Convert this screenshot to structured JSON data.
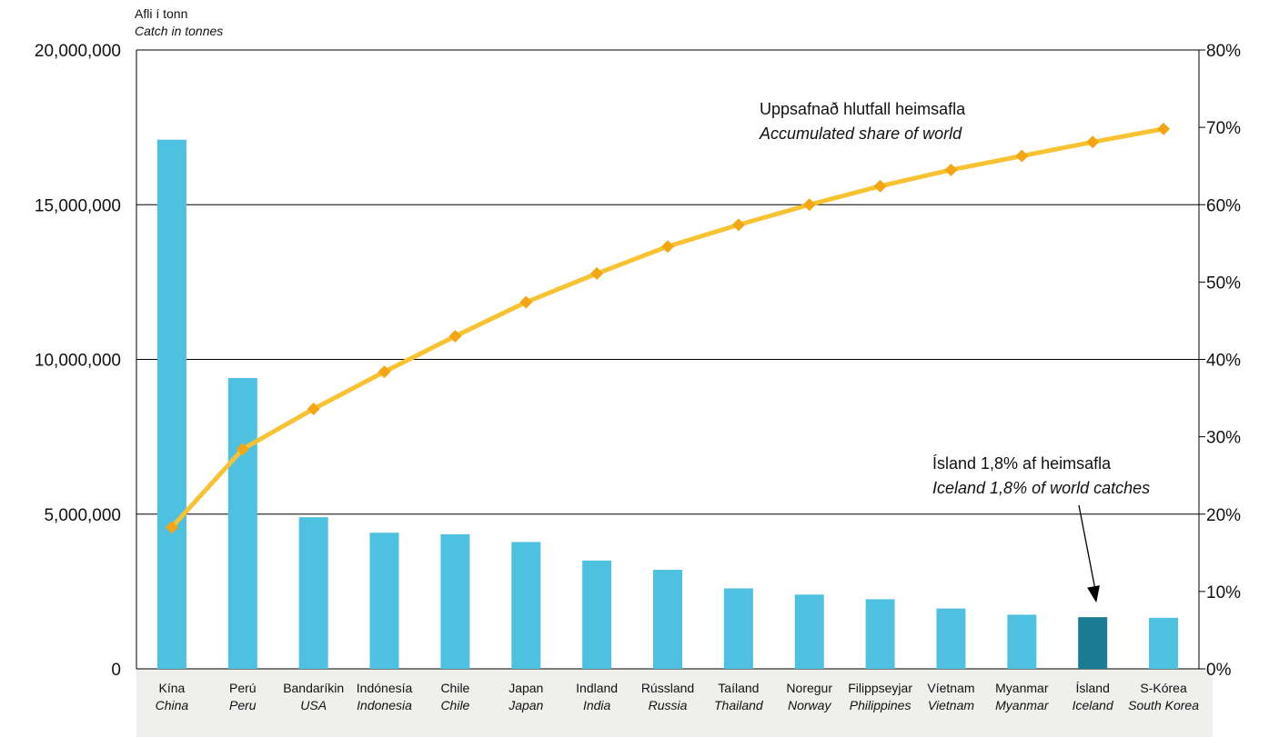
{
  "chart_data": {
    "type": "bar",
    "y_axis_title": {
      "is": "Afli í tonn",
      "en": "Catch in tonnes"
    },
    "ylim": [
      0,
      20000000
    ],
    "y_ticks": [
      "0",
      "5,000,000",
      "10,000,000",
      "15,000,000",
      "20,000,000"
    ],
    "y2lim": [
      0,
      80
    ],
    "y2_ticks": [
      "0%",
      "10%",
      "20%",
      "30%",
      "40%",
      "50%",
      "60%",
      "70%",
      "80%"
    ],
    "grid": "horizontal-major",
    "categories": [
      {
        "is": "Kína",
        "en": "China"
      },
      {
        "is": "Perú",
        "en": "Peru"
      },
      {
        "is": "Bandaríkin",
        "en": "USA"
      },
      {
        "is": "Indónesía",
        "en": "Indonesia"
      },
      {
        "is": "Chile",
        "en": "Chile"
      },
      {
        "is": "Japan",
        "en": "Japan"
      },
      {
        "is": "Indland",
        "en": "India"
      },
      {
        "is": "Rússland",
        "en": "Russia"
      },
      {
        "is": "Taíland",
        "en": "Thailand"
      },
      {
        "is": "Noregur",
        "en": "Norway"
      },
      {
        "is": "Filippseyjar",
        "en": "Philippines"
      },
      {
        "is": "Víetnam",
        "en": "Vietnam"
      },
      {
        "is": "Myanmar",
        "en": "Myanmar"
      },
      {
        "is": "Ísland",
        "en": "Iceland"
      },
      {
        "is": "S-Kórea",
        "en": "South Korea"
      }
    ],
    "series": [
      {
        "type": "bar",
        "axis": "left",
        "values": [
          17100000,
          9400000,
          4900000,
          4400000,
          4350000,
          4100000,
          3500000,
          3200000,
          2600000,
          2400000,
          2250000,
          1950000,
          1750000,
          1670000,
          1650000
        ],
        "highlight_index": 13
      },
      {
        "name": "Uppsafnað hlutfall heimsafla",
        "name_en": "Accumulated share of world",
        "type": "line",
        "axis": "right",
        "values": [
          18.3,
          28.4,
          33.6,
          38.4,
          43.0,
          47.4,
          51.1,
          54.6,
          57.4,
          60.0,
          62.4,
          64.5,
          66.3,
          68.1,
          69.8
        ]
      }
    ],
    "annotations": [
      {
        "text": "Ísland 1,8% af heimsafla",
        "text_en": "Iceland 1,8% of world catches",
        "target_index": 13
      }
    ],
    "colors": {
      "bar": "#4fc1e0",
      "bar_highlight": "#1a7b94",
      "line": "#f8c332",
      "marker": "#f5a511",
      "category_band": "#efefed",
      "grid": "#000000"
    }
  }
}
